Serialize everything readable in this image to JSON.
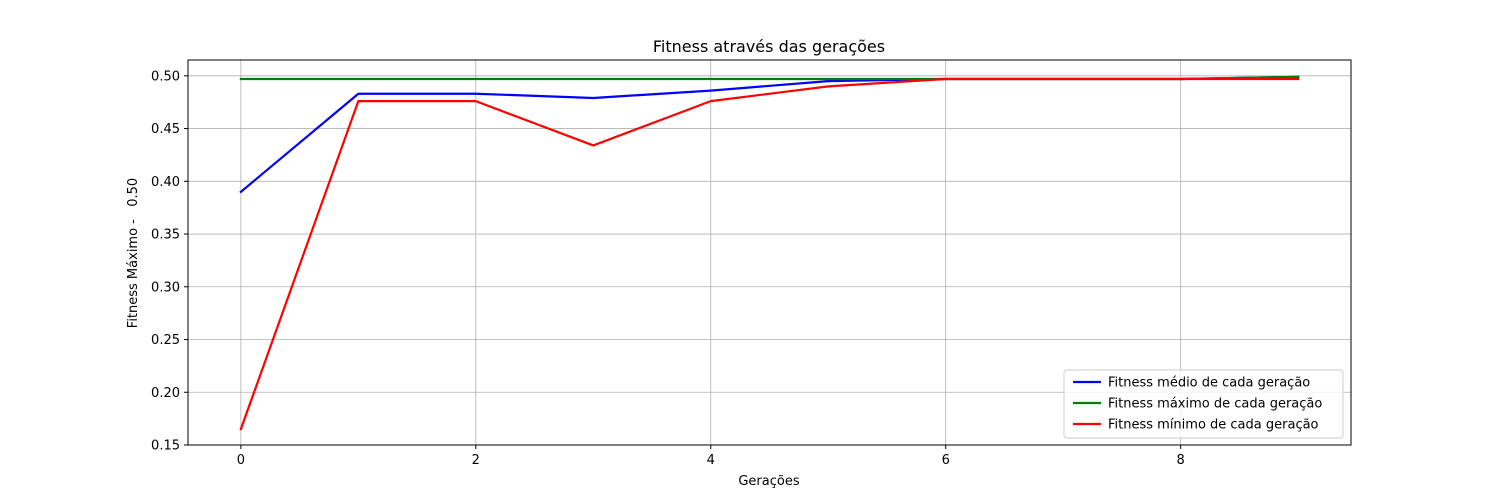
{
  "chart_data": {
    "type": "line",
    "title": "Fitness através das gerações",
    "xlabel": "Gerações",
    "ylabel": "Fitness Máximo -   0.50",
    "xlim": [
      -0.45,
      9.45
    ],
    "ylim": [
      0.15,
      0.515
    ],
    "xticks": [
      0,
      2,
      4,
      6,
      8
    ],
    "xtick_labels": [
      "0",
      "2",
      "4",
      "6",
      "8"
    ],
    "yticks": [
      0.15,
      0.2,
      0.25,
      0.3,
      0.35,
      0.4,
      0.45,
      0.5
    ],
    "ytick_labels": [
      "0.15",
      "0.20",
      "0.25",
      "0.30",
      "0.35",
      "0.40",
      "0.45",
      "0.50"
    ],
    "grid": true,
    "legend_position": "bottom-right",
    "x": [
      0,
      1,
      2,
      3,
      4,
      5,
      6,
      7,
      8,
      9
    ],
    "series": [
      {
        "name": "Fitness médio de cada geração",
        "color": "#0000ff",
        "values": [
          0.39,
          0.483,
          0.483,
          0.479,
          0.486,
          0.495,
          0.497,
          0.497,
          0.497,
          0.499
        ]
      },
      {
        "name": "Fitness máximo de cada geração",
        "color": "#008000",
        "values": [
          0.497,
          0.497,
          0.497,
          0.497,
          0.497,
          0.497,
          0.497,
          0.497,
          0.497,
          0.499
        ]
      },
      {
        "name": "Fitness mínimo de cada geração",
        "color": "#ff0000",
        "values": [
          0.165,
          0.476,
          0.476,
          0.434,
          0.476,
          0.49,
          0.497,
          0.497,
          0.497,
          0.497
        ]
      }
    ]
  }
}
